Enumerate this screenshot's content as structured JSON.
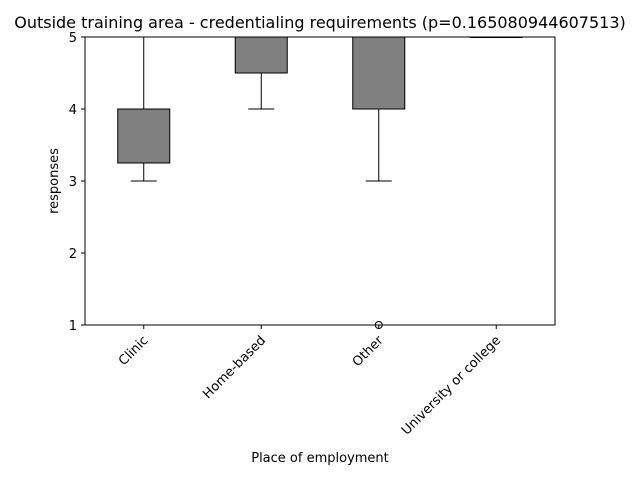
{
  "chart_data": {
    "type": "box",
    "title": "Outside training area - credentialing requirements (p=0.165080944607513)",
    "xlabel": "Place of employment",
    "ylabel": "responses",
    "categories": [
      "Clinic",
      "Home-based",
      "Other",
      "University or college"
    ],
    "boxes": [
      {
        "category": "Clinic",
        "whisker_low": 3,
        "q1": 3.25,
        "median": 4,
        "q3": 4,
        "whisker_high": 5,
        "outliers": []
      },
      {
        "category": "Home-based",
        "whisker_low": 4,
        "q1": 4.5,
        "median": 5,
        "q3": 5,
        "whisker_high": 5,
        "outliers": []
      },
      {
        "category": "Other",
        "whisker_low": 3,
        "q1": 4,
        "median": 5,
        "q3": 5,
        "whisker_high": 5,
        "outliers": [
          1
        ]
      },
      {
        "category": "University or college",
        "whisker_low": 5,
        "q1": 5,
        "median": 5,
        "q3": 5,
        "whisker_high": 5,
        "outliers": []
      }
    ],
    "ylim": [
      1,
      5
    ],
    "yticks": [
      1,
      2,
      3,
      4,
      5
    ],
    "box_color": "#808080",
    "line_color": "#000000",
    "grid": false
  }
}
